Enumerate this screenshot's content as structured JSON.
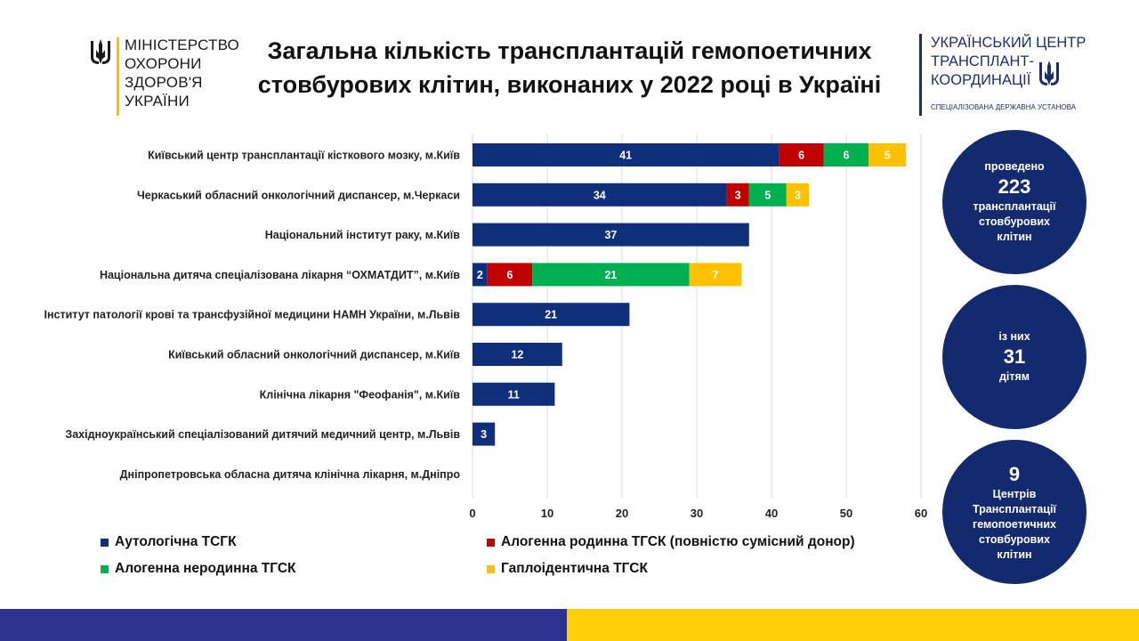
{
  "logos": {
    "left": {
      "lines": [
        "МІНІСТЕРСТВО",
        "ОХОРОНИ",
        "ЗДОРОВ'Я",
        "УКРАЇНИ"
      ]
    },
    "right": {
      "lines": [
        "УКРАЇНСЬКИЙ ЦЕНТР",
        "ТРАНСПЛАНТ-",
        "КООРДИНАЦІЇ"
      ],
      "subtitle": "СПЕЦІАЛІЗОВАНА ДЕРЖАВНА УСТАНОВА"
    }
  },
  "title": {
    "line1": "Загальна кількість трансплантацій гемопоетичних",
    "line2": "стовбурових клітин, виконаних у 2022 році в Україні"
  },
  "chart_data": {
    "type": "bar",
    "orientation": "horizontal",
    "stacked": true,
    "title": "Загальна кількість трансплантацій гемопоетичних стовбурових клітин, виконаних у 2022 році в Україні",
    "categories": [
      "Київський центр трансплантації кісткового мозку, м.Київ",
      "Черкаський обласний онкологічний диспансер, м.Черкаси",
      "Національний інститут раку, м.Київ",
      "Національна дитяча спеціалізована лікарня “ОХМАТДИТ”, м.Київ",
      "Інститут патології крові та трансфузійної медицини НАМН України, м.Львів",
      "Київський обласний онкологічний диспансер, м.Київ",
      "Клінічна лікарня \"Феофанія\", м.Київ",
      "Західноукраїнський спеціалізований дитячий медичний центр, м.Львів",
      "Дніпропетровська обласна дитяча клінічна лікарня, м.Дніпро"
    ],
    "series": [
      {
        "name": "Аутологічна ТСГК",
        "color": "#0f2f7a",
        "values": [
          41,
          34,
          37,
          2,
          21,
          12,
          11,
          3,
          0
        ]
      },
      {
        "name": "Алогенна родинна ТГСК (повністю сумісний донор)",
        "color": "#c00000",
        "values": [
          6,
          3,
          0,
          6,
          0,
          0,
          0,
          0,
          0
        ]
      },
      {
        "name": "Алогенна неродинна ТГСК",
        "color": "#00b050",
        "values": [
          6,
          5,
          0,
          21,
          0,
          0,
          0,
          0,
          0
        ]
      },
      {
        "name": "Гаплоідентична ТГСК",
        "color": "#ffc000",
        "values": [
          5,
          3,
          0,
          7,
          0,
          0,
          0,
          0,
          0
        ]
      }
    ],
    "xlim": [
      0,
      60
    ],
    "xticks": [
      0,
      10,
      20,
      30,
      40,
      50,
      60
    ],
    "grid": true,
    "legend_position": "bottom"
  },
  "stats": [
    {
      "top": "проведено",
      "number": "223",
      "bottom": [
        "трансплантації",
        "стовбурових",
        "клітин"
      ]
    },
    {
      "top": "із них",
      "number": "31",
      "bottom": [
        "дітям"
      ]
    },
    {
      "top": "",
      "number": "9",
      "bottom": [
        "Центрів",
        "Трансплантації",
        "гемопоетичних",
        "стовбурових",
        "клітин"
      ]
    }
  ],
  "colors": {
    "footer_blue": "#2e3190",
    "footer_yellow": "#fecf0a",
    "circle": "#132a6e"
  }
}
